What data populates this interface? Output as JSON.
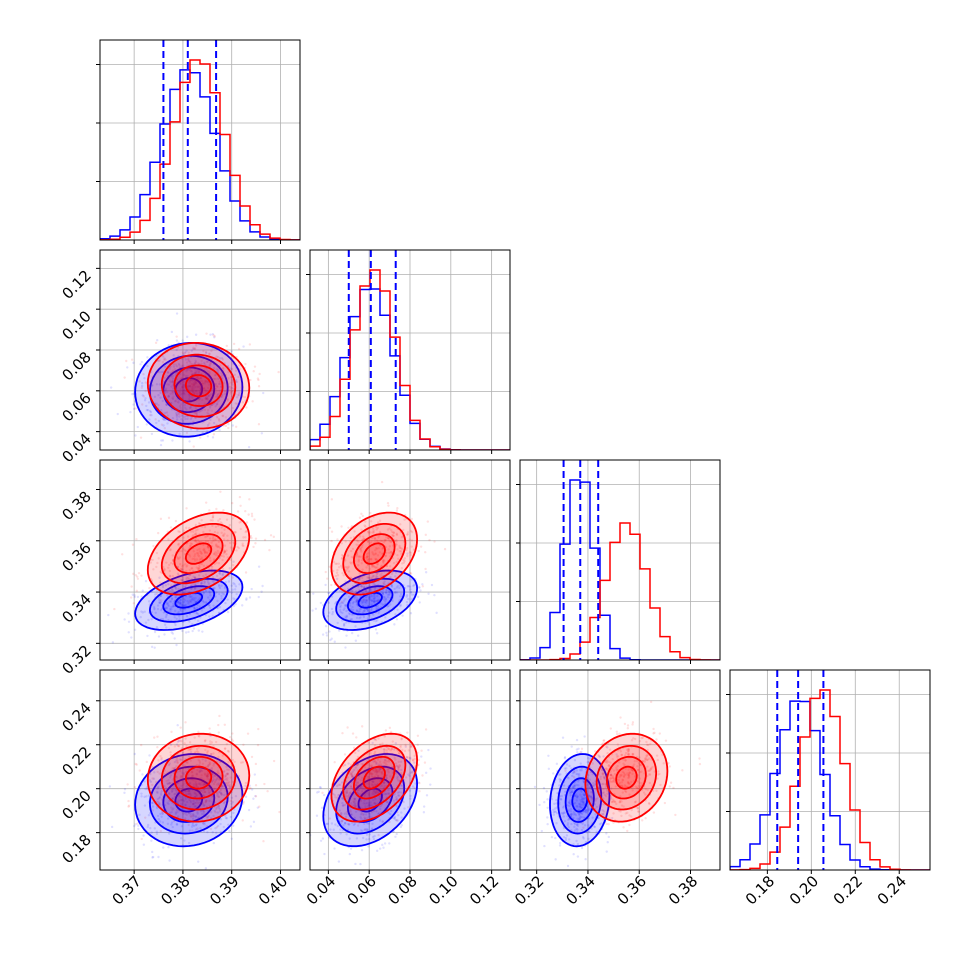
{
  "chart_data": {
    "type": "corner",
    "variables": 4,
    "grid": true,
    "series": [
      {
        "color": "#0000ff",
        "means": [
          0.3812,
          0.0605,
          0.3368,
          0.1948
        ],
        "sds": [
          0.0055,
          0.0115,
          0.0058,
          0.0105
        ],
        "quantiles": [
          [
            0.376,
            0.381,
            0.3868
          ],
          [
            0.05,
            0.0608,
            0.073
          ],
          [
            0.3305,
            0.337,
            0.344
          ],
          [
            0.1845,
            0.194,
            0.2055
          ]
        ],
        "correlations": {
          "1-0": 0.05,
          "2-0": 0.45,
          "2-1": 0.4,
          "3-0": 0.1,
          "3-1": 0.35,
          "3-2": 0.1
        }
      },
      {
        "color": "#ff0000",
        "means": [
          0.3832,
          0.0625,
          0.355,
          0.205
        ],
        "sds": [
          0.0052,
          0.0105,
          0.008,
          0.01
        ],
        "quantiles": null,
        "correlations": {
          "1-0": -0.05,
          "2-0": 0.4,
          "2-1": 0.35,
          "3-0": 0.05,
          "3-1": 0.4,
          "3-2": 0.15
        }
      }
    ],
    "axes": [
      {
        "range": [
          0.363,
          0.404
        ],
        "ticks": [
          0.37,
          0.38,
          0.39,
          0.4
        ],
        "tick_labels": [
          "0.37",
          "0.38",
          "0.39",
          "0.40"
        ]
      },
      {
        "range": [
          0.031,
          0.129
        ],
        "ticks": [
          0.04,
          0.06,
          0.08,
          0.1,
          0.12
        ],
        "tick_labels": [
          "0.04",
          "0.06",
          "0.08",
          "0.10",
          "0.12"
        ]
      },
      {
        "range": [
          0.3135,
          0.3915
        ],
        "ticks": [
          0.32,
          0.34,
          0.36,
          0.38
        ],
        "tick_labels": [
          "0.32",
          "0.34",
          "0.36",
          "0.38"
        ]
      },
      {
        "range": [
          0.163,
          0.254
        ],
        "ticks": [
          0.18,
          0.2,
          0.22,
          0.24
        ],
        "tick_labels": [
          "0.18",
          "0.20",
          "0.22",
          "0.24"
        ]
      }
    ]
  }
}
